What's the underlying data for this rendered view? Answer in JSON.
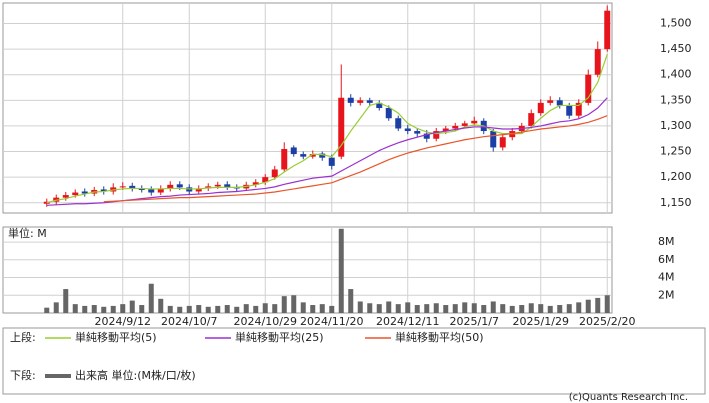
{
  "chart_data": [
    {
      "type": "candlestick",
      "categories": [
        null,
        null,
        null,
        null,
        null,
        null,
        null,
        null,
        "2024/9/12",
        null,
        null,
        null,
        null,
        null,
        null,
        "2024/10/7",
        null,
        null,
        null,
        null,
        null,
        null,
        null,
        "2024/10/29",
        null,
        null,
        null,
        null,
        null,
        null,
        "2024/11/20",
        null,
        null,
        null,
        null,
        null,
        null,
        null,
        "2024/12/11",
        null,
        null,
        null,
        null,
        null,
        null,
        "2025/1/7",
        null,
        null,
        null,
        null,
        null,
        null,
        "2025/1/29",
        null,
        null,
        null,
        null,
        null,
        null,
        "2025/2/20"
      ],
      "open": [
        1148,
        1152,
        1160,
        1165,
        1172,
        1168,
        1176,
        1172,
        1180,
        1183,
        1178,
        1176,
        1170,
        1178,
        1186,
        1180,
        1172,
        1178,
        1182,
        1186,
        1180,
        1178,
        1185,
        1190,
        1200,
        1215,
        1258,
        1245,
        1240,
        1246,
        1238,
        1240,
        1355,
        1345,
        1350,
        1345,
        1335,
        1315,
        1295,
        1290,
        1285,
        1275,
        1290,
        1295,
        1300,
        1305,
        1310,
        1290,
        1258,
        1278,
        1290,
        1300,
        1325,
        1345,
        1350,
        1340,
        1320,
        1345,
        1400,
        1450
      ],
      "high": [
        1158,
        1166,
        1171,
        1176,
        1178,
        1181,
        1182,
        1188,
        1190,
        1189,
        1184,
        1182,
        1184,
        1192,
        1192,
        1186,
        1184,
        1188,
        1191,
        1192,
        1186,
        1191,
        1196,
        1206,
        1222,
        1268,
        1262,
        1250,
        1252,
        1250,
        1244,
        1420,
        1362,
        1356,
        1355,
        1350,
        1340,
        1320,
        1302,
        1296,
        1292,
        1296,
        1300,
        1306,
        1310,
        1318,
        1315,
        1294,
        1284,
        1296,
        1306,
        1332,
        1352,
        1358,
        1356,
        1345,
        1352,
        1410,
        1465,
        1535
      ],
      "low": [
        1142,
        1146,
        1154,
        1160,
        1162,
        1163,
        1166,
        1166,
        1175,
        1172,
        1170,
        1164,
        1165,
        1172,
        1175,
        1166,
        1167,
        1173,
        1177,
        1175,
        1172,
        1173,
        1180,
        1185,
        1195,
        1210,
        1240,
        1235,
        1236,
        1232,
        1215,
        1235,
        1338,
        1340,
        1338,
        1330,
        1310,
        1290,
        1284,
        1278,
        1268,
        1270,
        1284,
        1290,
        1295,
        1300,
        1284,
        1250,
        1252,
        1272,
        1285,
        1295,
        1320,
        1340,
        1334,
        1314,
        1315,
        1340,
        1395,
        1445
      ],
      "close": [
        1152,
        1160,
        1165,
        1170,
        1168,
        1175,
        1172,
        1180,
        1182,
        1178,
        1175,
        1170,
        1178,
        1185,
        1180,
        1172,
        1178,
        1182,
        1185,
        1180,
        1178,
        1185,
        1190,
        1200,
        1215,
        1255,
        1245,
        1240,
        1245,
        1238,
        1222,
        1355,
        1345,
        1350,
        1345,
        1335,
        1315,
        1295,
        1290,
        1285,
        1275,
        1290,
        1295,
        1300,
        1305,
        1310,
        1290,
        1258,
        1278,
        1290,
        1300,
        1325,
        1345,
        1350,
        1340,
        1320,
        1345,
        1400,
        1450,
        1525
      ],
      "up_color": "#e8141c",
      "down_color": "#1c3fa6",
      "series": [
        {
          "name": "単純移動平均(5)",
          "color": "#9acd32",
          "values": [
            1150,
            1155,
            1158,
            1163,
            1167,
            1171,
            1172,
            1175,
            1177,
            1178,
            1178,
            1177,
            1177,
            1178,
            1178,
            1177,
            1177,
            1179,
            1180,
            1180,
            1180,
            1182,
            1185,
            1190,
            1197,
            1210,
            1222,
            1232,
            1245,
            1244,
            1240,
            1262,
            1290,
            1315,
            1340,
            1345,
            1337,
            1325,
            1305,
            1295,
            1288,
            1285,
            1287,
            1290,
            1298,
            1302,
            1300,
            1290,
            1285,
            1285,
            1285,
            1298,
            1315,
            1330,
            1340,
            1340,
            1340,
            1355,
            1385,
            1440
          ]
        },
        {
          "name": "単純移動平均(25)",
          "color": "#9b30d0",
          "values": [
            1145,
            1146,
            1147,
            1148,
            1148,
            1149,
            1150,
            1152,
            1154,
            1156,
            1158,
            1160,
            1162,
            1163,
            1165,
            1166,
            1167,
            1168,
            1170,
            1171,
            1172,
            1174,
            1176,
            1178,
            1181,
            1186,
            1190,
            1194,
            1198,
            1200,
            1202,
            1212,
            1222,
            1232,
            1242,
            1252,
            1260,
            1267,
            1273,
            1278,
            1283,
            1287,
            1290,
            1293,
            1296,
            1298,
            1298,
            1296,
            1294,
            1294,
            1295,
            1297,
            1300,
            1304,
            1308,
            1310,
            1314,
            1322,
            1335,
            1355
          ]
        },
        {
          "name": "単純移動平均(50)",
          "color": "#e8552a",
          "values": [
            null,
            null,
            null,
            null,
            null,
            null,
            1152,
            1153,
            1154,
            1155,
            1156,
            1157,
            1158,
            1159,
            1160,
            1160,
            1161,
            1162,
            1163,
            1164,
            1165,
            1166,
            1167,
            1169,
            1171,
            1174,
            1177,
            1180,
            1183,
            1186,
            1189,
            1196,
            1203,
            1210,
            1218,
            1226,
            1234,
            1241,
            1247,
            1252,
            1257,
            1261,
            1265,
            1269,
            1273,
            1276,
            1279,
            1281,
            1283,
            1285,
            1288,
            1291,
            1294,
            1296,
            1298,
            1300,
            1303,
            1307,
            1313,
            1320
          ]
        }
      ],
      "ylim": [
        1130,
        1540
      ],
      "yticks": [
        {
          "value": 1150,
          "label": "1,150"
        },
        {
          "value": 1200,
          "label": "1,200"
        },
        {
          "value": 1250,
          "label": "1,250"
        },
        {
          "value": 1300,
          "label": "1,300"
        },
        {
          "value": 1350,
          "label": "1,350"
        },
        {
          "value": 1400,
          "label": "1,400"
        },
        {
          "value": 1450,
          "label": "1,450"
        },
        {
          "value": 1500,
          "label": "1,500"
        }
      ],
      "grid": true
    },
    {
      "type": "bar",
      "unit_label": "単位: M",
      "name": "出来高 単位:(M株/口/枚)",
      "color": "#666666",
      "values": [
        0.6,
        1.2,
        2.7,
        1.0,
        0.8,
        0.9,
        0.7,
        0.8,
        1.0,
        1.4,
        0.9,
        3.3,
        1.6,
        0.8,
        0.7,
        0.8,
        0.9,
        0.7,
        0.8,
        0.9,
        0.7,
        1.0,
        0.8,
        1.1,
        1.0,
        1.9,
        2.0,
        1.2,
        0.9,
        1.0,
        0.8,
        9.5,
        2.7,
        1.3,
        1.1,
        1.0,
        1.3,
        1.0,
        1.2,
        0.9,
        1.0,
        1.1,
        0.9,
        1.0,
        1.2,
        1.1,
        0.9,
        1.3,
        1.0,
        0.8,
        0.9,
        1.1,
        1.0,
        0.8,
        0.9,
        1.0,
        1.2,
        1.5,
        1.7,
        2.0
      ],
      "ylim": [
        0,
        9.7
      ],
      "yticks": [
        {
          "value": 2,
          "label": "2M"
        },
        {
          "value": 4,
          "label": "4M"
        },
        {
          "value": 6,
          "label": "6M"
        },
        {
          "value": 8,
          "label": "8M"
        }
      ],
      "grid": true
    }
  ],
  "legend": {
    "upper_label": "上段:",
    "lower_label": "下段:"
  },
  "copyright": "(c)Quants Research Inc."
}
